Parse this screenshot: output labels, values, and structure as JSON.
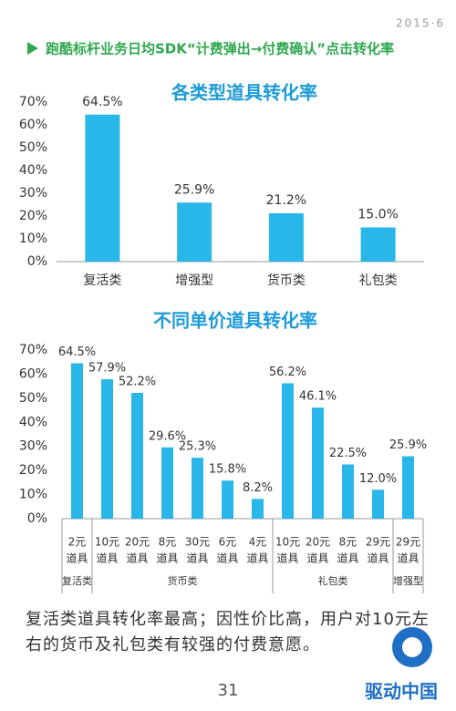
{
  "logo_text": "2015·6",
  "header": "跑酷标杆业务日均SDK“计费弹出→付费确认”点击转化率",
  "chart_data": [
    {
      "type": "bar",
      "title": "各类型道具转化率",
      "color": "#29b6e8",
      "categories": [
        "复活类",
        "增强型",
        "货币类",
        "礼包类"
      ],
      "values": [
        64.5,
        25.9,
        21.2,
        15.0
      ],
      "value_labels": [
        "64.5%",
        "25.9%",
        "21.2%",
        "15.0%"
      ],
      "ylim": [
        0,
        70
      ],
      "yticks": [
        {
          "value": 0,
          "label": "0%"
        },
        {
          "value": 10,
          "label": "10%"
        },
        {
          "value": 20,
          "label": "20%"
        },
        {
          "value": 30,
          "label": "30%"
        },
        {
          "value": 40,
          "label": "40%"
        },
        {
          "value": 50,
          "label": "50%"
        },
        {
          "value": 60,
          "label": "60%"
        },
        {
          "value": 70,
          "label": "70%"
        }
      ]
    },
    {
      "type": "grouped-bar",
      "title": "不同单价道具转化率",
      "color": "#29b6e8",
      "groups": [
        {
          "label": "复活类",
          "categories": [
            [
              "2元",
              "道具"
            ]
          ],
          "values": [
            64.5
          ],
          "value_labels": [
            "64.5%"
          ]
        },
        {
          "label": "货币类",
          "categories": [
            [
              "10元",
              "道具"
            ],
            [
              "20元",
              "道具"
            ],
            [
              "8元",
              "道具"
            ],
            [
              "30元",
              "道具"
            ],
            [
              "6元",
              "道具"
            ],
            [
              "4元",
              "道具"
            ]
          ],
          "values": [
            57.9,
            52.2,
            29.6,
            25.3,
            15.8,
            8.2
          ],
          "value_labels": [
            "57.9%",
            "52.2%",
            "29.6%",
            "25.3%",
            "15.8%",
            "8.2%"
          ]
        },
        {
          "label": "礼包类",
          "categories": [
            [
              "10元",
              "道具"
            ],
            [
              "20元",
              "道具"
            ],
            [
              "8元",
              "道具"
            ],
            [
              "29元",
              "道具"
            ]
          ],
          "values": [
            56.2,
            46.1,
            22.5,
            12.0
          ],
          "value_labels": [
            "56.2%",
            "46.1%",
            "22.5%",
            "12.0%"
          ]
        },
        {
          "label": "增强型",
          "categories": [
            [
              "29元",
              "道具"
            ]
          ],
          "values": [
            25.9
          ],
          "value_labels": [
            "25.9%"
          ]
        }
      ],
      "ylim": [
        0,
        70
      ],
      "yticks": [
        {
          "value": 0,
          "label": "0%"
        },
        {
          "value": 10,
          "label": "10%"
        },
        {
          "value": 20,
          "label": "20%"
        },
        {
          "value": 30,
          "label": "30%"
        },
        {
          "value": 40,
          "label": "40%"
        },
        {
          "value": 50,
          "label": "50%"
        },
        {
          "value": 60,
          "label": "60%"
        },
        {
          "value": 70,
          "label": "70%"
        }
      ]
    }
  ],
  "caption": "复活类道具转化率最高；因性价比高，用户对10元左右的货币及礼包类有较强的付费意愿。",
  "page_number": "31",
  "watermark": "驱动中国"
}
